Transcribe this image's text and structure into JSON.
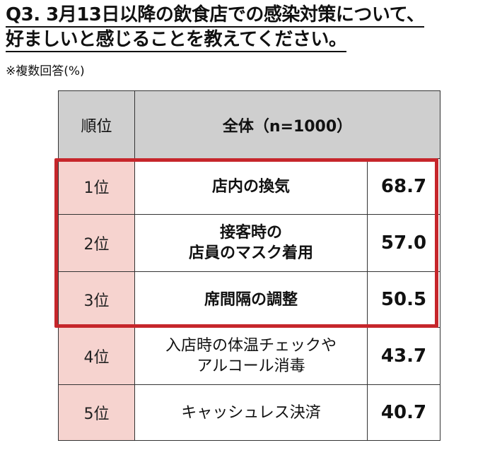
{
  "title": {
    "line1": "Q3. 3月13日以降の飲食店での感染対策について、",
    "line2": "好ましいと感じることを教えてください。"
  },
  "note": "※複数回答(%)",
  "table": {
    "header_rank": "順位",
    "header_total": "全体（n=1000）",
    "rows": [
      {
        "rank": "1位",
        "item": "店内の換気",
        "value": "68.7",
        "highlighted": true
      },
      {
        "rank": "2位",
        "item": "接客時の\n店員のマスク着用",
        "value": "57.0",
        "highlighted": true
      },
      {
        "rank": "3位",
        "item": "席間隔の調整",
        "value": "50.5",
        "highlighted": true
      },
      {
        "rank": "4位",
        "item": "入店時の体温チェックや\nアルコール消毒",
        "value": "43.7",
        "highlighted": false
      },
      {
        "rank": "5位",
        "item": "キャッシュレス決済",
        "value": "40.7",
        "highlighted": false
      }
    ]
  },
  "colors": {
    "highlight_border": "#c6262b",
    "rank_cell_bg": "#f6d3cf",
    "header_bg": "#cfcfcf"
  }
}
